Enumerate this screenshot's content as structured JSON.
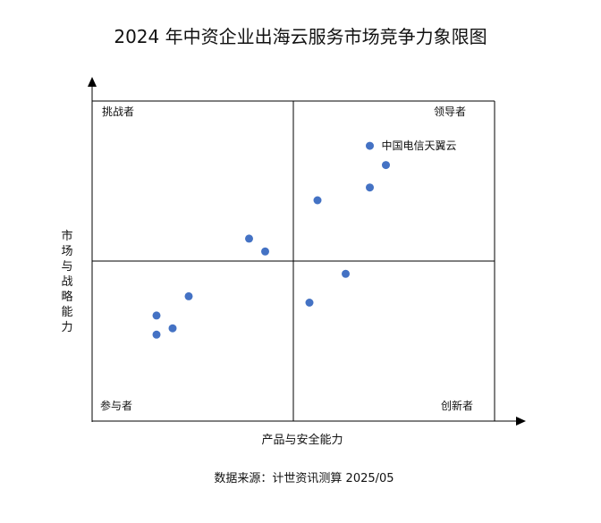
{
  "chart_data": {
    "type": "scatter",
    "title": "2024 年中资企业出海云服务市场竞争力象限图",
    "xlabel": "产品与安全能力",
    "ylabel": "市场与战略能力",
    "xlim": [
      0,
      10
    ],
    "ylim": [
      0,
      10
    ],
    "quadrants": {
      "top_left": "挑战者",
      "top_right": "领导者",
      "bottom_left": "参与者",
      "bottom_right": "创新者"
    },
    "points": [
      {
        "x": 6.9,
        "y": 8.6,
        "label": "中国电信天翼云"
      },
      {
        "x": 7.3,
        "y": 8.0,
        "label": ""
      },
      {
        "x": 6.9,
        "y": 7.3,
        "label": ""
      },
      {
        "x": 5.6,
        "y": 6.9,
        "label": ""
      },
      {
        "x": 3.9,
        "y": 5.7,
        "label": ""
      },
      {
        "x": 4.3,
        "y": 5.3,
        "label": ""
      },
      {
        "x": 6.3,
        "y": 4.6,
        "label": ""
      },
      {
        "x": 5.4,
        "y": 3.7,
        "label": ""
      },
      {
        "x": 2.4,
        "y": 3.9,
        "label": ""
      },
      {
        "x": 1.6,
        "y": 3.3,
        "label": ""
      },
      {
        "x": 2.0,
        "y": 2.9,
        "label": ""
      },
      {
        "x": 1.6,
        "y": 2.7,
        "label": ""
      }
    ],
    "point_color": "#4472C4",
    "grid": false,
    "legend": "none"
  },
  "source": "数据来源：计世资讯测算 2025/05"
}
